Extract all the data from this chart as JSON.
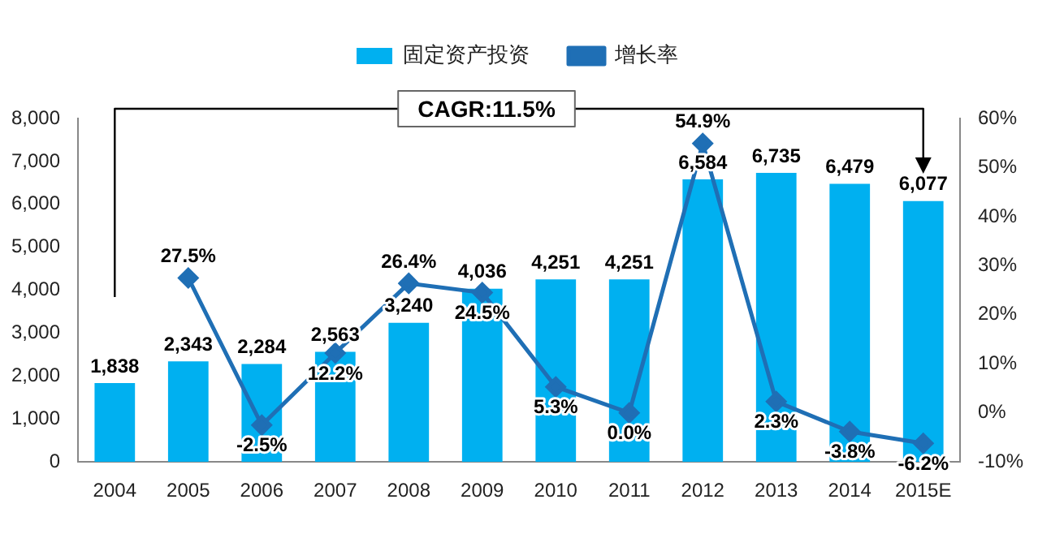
{
  "chart_data": {
    "type": "bar",
    "categories": [
      "2004",
      "2005",
      "2006",
      "2007",
      "2008",
      "2009",
      "2010",
      "2011",
      "2012",
      "2013",
      "2014",
      "2015E"
    ],
    "series": [
      {
        "name": "固定资产投资",
        "color": "#00b0f0",
        "values": [
          1838,
          2343,
          2284,
          2563,
          3240,
          4036,
          4251,
          4251,
          6584,
          6735,
          6479,
          6077
        ],
        "value_labels": [
          "1,838",
          "2,343",
          "2,284",
          "2,563",
          "3,240",
          "4,036",
          "4,251",
          "4,251",
          "6,584",
          "6,735",
          "6,479",
          "6,077"
        ]
      },
      {
        "name": "增长率",
        "type": "line",
        "axis": "y2",
        "color": "#1f6fb5",
        "marker": "diamond",
        "values": [
          null,
          27.5,
          -2.5,
          12.2,
          26.4,
          24.5,
          5.3,
          0.0,
          54.9,
          2.3,
          -3.8,
          -6.2
        ],
        "value_labels": [
          null,
          "27.5%",
          "-2.5%",
          "12.2%",
          "26.4%",
          "24.5%",
          "5.3%",
          "0.0%",
          "54.9%",
          "2.3%",
          "-3.8%",
          "-6.2%"
        ]
      }
    ],
    "ylim": [
      0,
      8000
    ],
    "yticks": [
      {
        "value": 0,
        "label": "0"
      },
      {
        "value": 1000,
        "label": "1,000"
      },
      {
        "value": 2000,
        "label": "2,000"
      },
      {
        "value": 3000,
        "label": "3,000"
      },
      {
        "value": 4000,
        "label": "4,000"
      },
      {
        "value": 5000,
        "label": "5,000"
      },
      {
        "value": 6000,
        "label": "6,000"
      },
      {
        "value": 7000,
        "label": "7,000"
      },
      {
        "value": 8000,
        "label": "8,000"
      }
    ],
    "y2lim": [
      -10,
      60
    ],
    "y2ticks": [
      {
        "value": -10,
        "label": "-10%"
      },
      {
        "value": 0,
        "label": "0%"
      },
      {
        "value": 10,
        "label": "10%"
      },
      {
        "value": 20,
        "label": "20%"
      },
      {
        "value": 30,
        "label": "30%"
      },
      {
        "value": 40,
        "label": "40%"
      },
      {
        "value": 50,
        "label": "50%"
      },
      {
        "value": 60,
        "label": "60%"
      }
    ],
    "annotations": [
      "CAGR:11.5%"
    ],
    "legend": "top",
    "grid": false
  }
}
